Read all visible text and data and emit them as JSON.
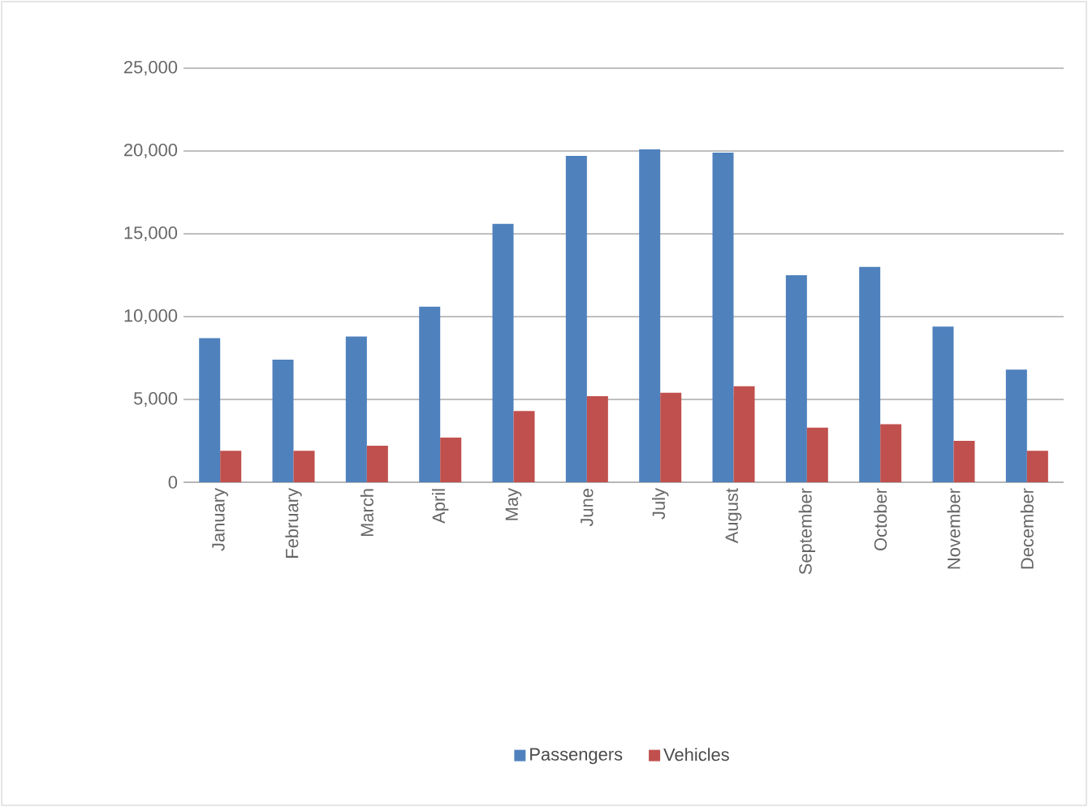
{
  "chart_data": {
    "type": "bar",
    "categories": [
      "January",
      "February",
      "March",
      "April",
      "May",
      "June",
      "July",
      "August",
      "September",
      "October",
      "November",
      "December"
    ],
    "series": [
      {
        "name": "Passengers",
        "color": "#4f81bd",
        "values": [
          8700,
          7400,
          8800,
          10600,
          15600,
          19700,
          20100,
          19900,
          12500,
          13000,
          9400,
          6800
        ]
      },
      {
        "name": "Vehicles",
        "color": "#c0504d",
        "values": [
          1900,
          1900,
          2200,
          2700,
          4300,
          5200,
          5400,
          5800,
          3300,
          3500,
          2500,
          1900
        ]
      }
    ],
    "ylim": [
      0,
      25000
    ],
    "yticks": [
      {
        "value": 0,
        "label": "0"
      },
      {
        "value": 5000,
        "label": "5,000"
      },
      {
        "value": 10000,
        "label": "10,000"
      },
      {
        "value": 15000,
        "label": "15,000"
      },
      {
        "value": 20000,
        "label": "20,000"
      },
      {
        "value": 25000,
        "label": "25,000"
      }
    ],
    "grid": "y",
    "legend": "bottom"
  }
}
